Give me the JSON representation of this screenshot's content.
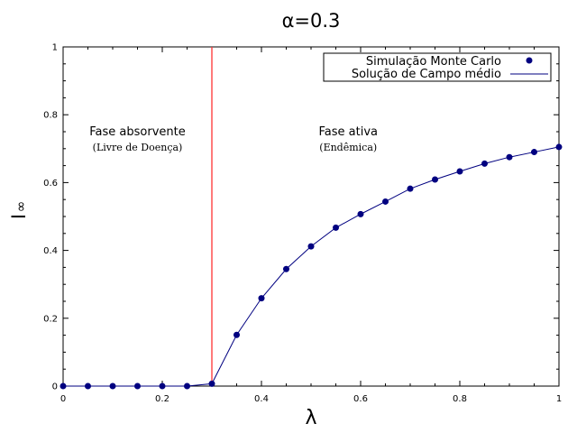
{
  "chart_data": {
    "type": "scatter",
    "title": "α=0.3",
    "xlabel": "λ",
    "ylabel_main": "I",
    "ylabel_sub": "∞",
    "xlim": [
      0,
      1
    ],
    "ylim": [
      0,
      1
    ],
    "x_ticks": [
      0,
      0.2,
      0.4,
      0.6,
      0.8,
      1
    ],
    "x_tick_labels": [
      "0",
      "0.2",
      "0.4",
      "0.6",
      "0.8",
      "1"
    ],
    "y_ticks": [
      0,
      0.2,
      0.4,
      0.6,
      0.8,
      1
    ],
    "y_tick_labels": [
      "0",
      "0.2",
      "0.4",
      "0.6",
      "0.8",
      "1"
    ],
    "grid": false,
    "legend_position": "top-right",
    "threshold": {
      "x": 0.3,
      "color": "#ff3333"
    },
    "series": [
      {
        "name": "Simulação Monte Carlo",
        "kind": "points",
        "color": "#000080",
        "x": [
          0,
          0.05,
          0.1,
          0.15,
          0.2,
          0.25,
          0.3,
          0.35,
          0.4,
          0.45,
          0.5,
          0.55,
          0.6,
          0.65,
          0.7,
          0.75,
          0.8,
          0.85,
          0.9,
          0.95,
          1.0
        ],
        "y": [
          0,
          0,
          0,
          0,
          0,
          0,
          0.007,
          0.151,
          0.259,
          0.345,
          0.412,
          0.467,
          0.507,
          0.544,
          0.582,
          0.609,
          0.633,
          0.656,
          0.675,
          0.69,
          0.705
        ]
      },
      {
        "name": "Solução de Campo médio",
        "kind": "line",
        "color": "#000080",
        "x": [
          0,
          0.05,
          0.1,
          0.15,
          0.2,
          0.25,
          0.3,
          0.35,
          0.4,
          0.45,
          0.5,
          0.55,
          0.6,
          0.65,
          0.7,
          0.75,
          0.8,
          0.85,
          0.9,
          0.95,
          1.0
        ],
        "y": [
          0,
          0,
          0,
          0,
          0,
          0,
          0.007,
          0.151,
          0.259,
          0.345,
          0.412,
          0.467,
          0.507,
          0.544,
          0.582,
          0.609,
          0.633,
          0.656,
          0.675,
          0.69,
          0.705
        ]
      }
    ],
    "annotations": [
      {
        "text": "Fase absorvente",
        "x": 0.15,
        "y": 0.75,
        "style": "sans"
      },
      {
        "text": "(Livre de Doença)",
        "x": 0.15,
        "y": 0.705,
        "style": "serif"
      },
      {
        "text": "Fase ativa",
        "x": 0.575,
        "y": 0.75,
        "style": "sans"
      },
      {
        "text": "(Endêmica)",
        "x": 0.575,
        "y": 0.705,
        "style": "serif"
      }
    ]
  }
}
